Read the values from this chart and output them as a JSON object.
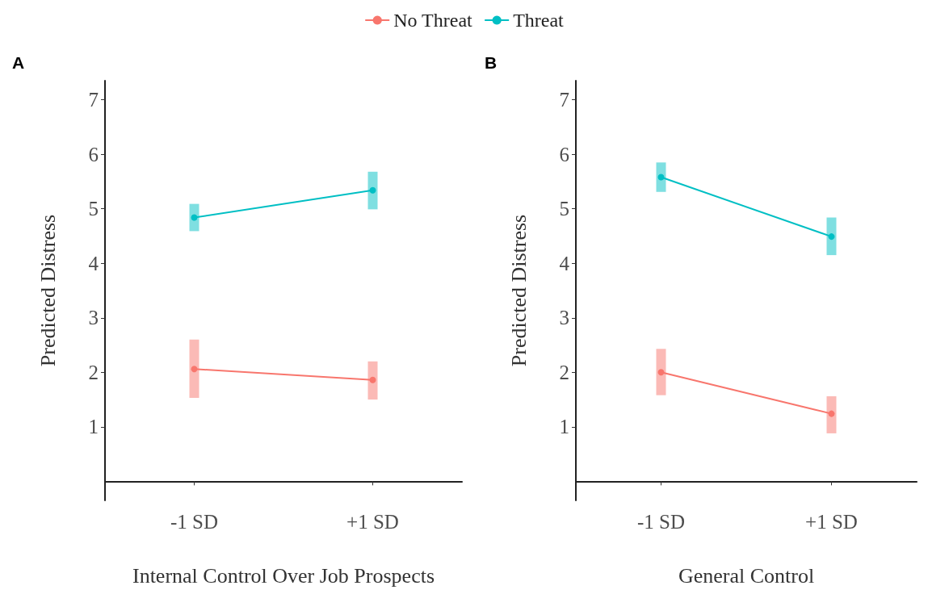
{
  "chart_data": [
    {
      "type": "line",
      "title": "A",
      "categories": [
        "-1 SD",
        "+1 SD"
      ],
      "xlabel": "Internal Control Over Job Prospects",
      "ylabel": "Predicted Distress",
      "ylim": [
        -0.35,
        7.35
      ],
      "yticks": [
        1,
        2,
        3,
        4,
        5,
        6,
        7
      ],
      "marker": "circle",
      "legend": "top",
      "grid": false,
      "series": [
        {
          "name": "No Threat",
          "color": "#f8766d",
          "values": [
            2.06,
            1.86
          ],
          "errors": [
            [
              1.53,
              2.6
            ],
            [
              1.5,
              2.2
            ]
          ]
        },
        {
          "name": "Threat",
          "color": "#00bfc4",
          "values": [
            4.84,
            5.34
          ],
          "errors": [
            [
              4.59,
              5.09
            ],
            [
              4.99,
              5.68
            ]
          ]
        }
      ]
    },
    {
      "type": "line",
      "title": "B",
      "categories": [
        "-1 SD",
        "+1 SD"
      ],
      "xlabel": "General Control",
      "ylabel": "Predicted Distress",
      "ylim": [
        -0.35,
        7.35
      ],
      "yticks": [
        1,
        2,
        3,
        4,
        5,
        6,
        7
      ],
      "marker": "circle",
      "grid": false,
      "series": [
        {
          "color": "#f8766d",
          "values": [
            2.0,
            1.24
          ],
          "errors": [
            [
              1.58,
              2.43
            ],
            [
              0.88,
              1.56
            ]
          ]
        },
        {
          "color": "#00bfc4",
          "values": [
            5.58,
            4.49
          ],
          "errors": [
            [
              5.31,
              5.85
            ],
            [
              4.15,
              4.84
            ]
          ]
        }
      ]
    }
  ]
}
